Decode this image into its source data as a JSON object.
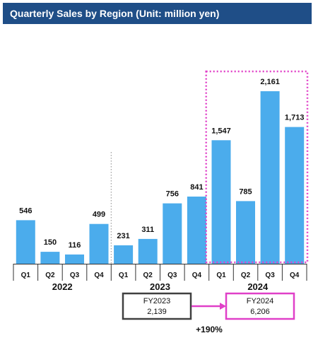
{
  "chart_data": {
    "type": "bar",
    "title": "Quarterly Sales by Region (Unit: million yen)",
    "years": [
      {
        "label": "2022",
        "quarters": [
          "Q1",
          "Q2",
          "Q3",
          "Q4"
        ],
        "values": [
          546,
          150,
          116,
          499
        ],
        "value_labels": [
          "546",
          "150",
          "116",
          "499"
        ]
      },
      {
        "label": "2023",
        "quarters": [
          "Q1",
          "Q2",
          "Q3",
          "Q4"
        ],
        "values": [
          231,
          311,
          756,
          841
        ],
        "value_labels": [
          "231",
          "311",
          "756",
          "841"
        ]
      },
      {
        "label": "2024",
        "quarters": [
          "Q1",
          "Q2",
          "Q3",
          "Q4"
        ],
        "values": [
          1547,
          785,
          2161,
          1713
        ],
        "value_labels": [
          "1,547",
          "785",
          "2,161",
          "1,713"
        ]
      }
    ],
    "ylim": [
      0,
      2400
    ],
    "bar_color": "#4bacec",
    "annotations": {
      "fy2023": {
        "label": "FY2023",
        "value": "2,139",
        "border_color": "#404040"
      },
      "fy2024": {
        "label": "FY2024",
        "value": "6,206",
        "border_color": "#e040c8"
      },
      "growth": "+190%",
      "highlight_color": "#e040c8"
    }
  }
}
